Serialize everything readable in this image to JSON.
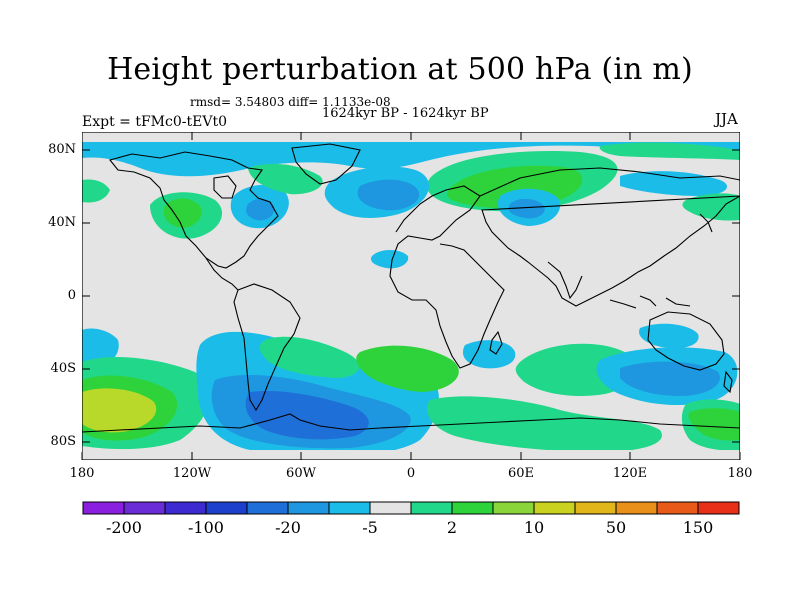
{
  "title": "Height perturbation at 500 hPa (in m)",
  "stats": "rmsd= 3.54803 diff= 1.1133e-08",
  "period": "1624kyr BP - 1624kyr BP",
  "experiment": "Expt = tFMc0-tEVt0",
  "season": "JJA",
  "axes": {
    "lat_ticks": [
      "80N",
      "40N",
      "0",
      "40S",
      "80S"
    ],
    "lon_ticks": [
      "180",
      "120W",
      "60W",
      "0",
      "60E",
      "120E",
      "180"
    ]
  },
  "colorbar": {
    "labels": [
      "-200",
      "-100",
      "-20",
      "-5",
      "2",
      "10",
      "50",
      "150"
    ],
    "colors": [
      "#8a1fe0",
      "#6a2cd6",
      "#3d2ad0",
      "#1c3fcc",
      "#1f6fd8",
      "#1e97e0",
      "#1cbce8",
      "#e4e4e4",
      "#21d88a",
      "#2ed23a",
      "#8ad63a",
      "#c9d21e",
      "#e1b61a",
      "#e8901a",
      "#e85a18",
      "#e83018"
    ]
  },
  "palette": {
    "neutral": "#e4e4e4",
    "light_blue": "#1cbce8",
    "mid_blue": "#1e97e0",
    "blue": "#1f6fd8",
    "deep_blue": "#1c3fcc",
    "teal_green": "#21d88a",
    "green": "#2ed23a",
    "yellow_green": "#b8d82a"
  }
}
